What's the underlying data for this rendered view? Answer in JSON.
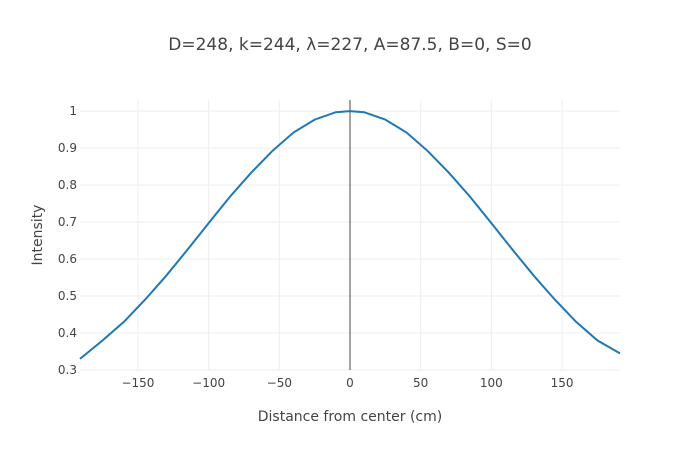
{
  "chart_data": {
    "type": "line",
    "title": "D=248, k=244, λ=227, A=87.5, B=0, S=0",
    "xlabel": "Distance from center (cm)",
    "ylabel": "Intensity",
    "xlim": [
      -191,
      191
    ],
    "ylim": [
      0.3,
      1.03
    ],
    "x_ticks": [
      -150,
      -100,
      -50,
      0,
      50,
      100,
      150
    ],
    "x_tick_labels": [
      "−150",
      "−100",
      "−50",
      "0",
      "50",
      "100",
      "150"
    ],
    "y_ticks": [
      0.3,
      0.4,
      0.5,
      0.6,
      0.7,
      0.8,
      0.9,
      1
    ],
    "y_tick_labels": [
      "0.3",
      "0.4",
      "0.5",
      "0.6",
      "0.7",
      "0.8",
      "0.9",
      "1"
    ],
    "grid": true,
    "series": [
      {
        "color": "#1f77b4",
        "x": [
          -191,
          -175,
          -160,
          -145,
          -130,
          -115,
          -100,
          -85,
          -70,
          -55,
          -40,
          -25,
          -10,
          0,
          10,
          25,
          40,
          55,
          70,
          85,
          100,
          115,
          130,
          145,
          160,
          175,
          191
        ],
        "y": [
          0.33,
          0.38,
          0.43,
          0.49,
          0.555,
          0.625,
          0.697,
          0.768,
          0.833,
          0.892,
          0.942,
          0.977,
          0.997,
          1.0,
          0.997,
          0.977,
          0.942,
          0.892,
          0.833,
          0.768,
          0.697,
          0.625,
          0.555,
          0.49,
          0.43,
          0.38,
          0.345
        ]
      }
    ]
  }
}
